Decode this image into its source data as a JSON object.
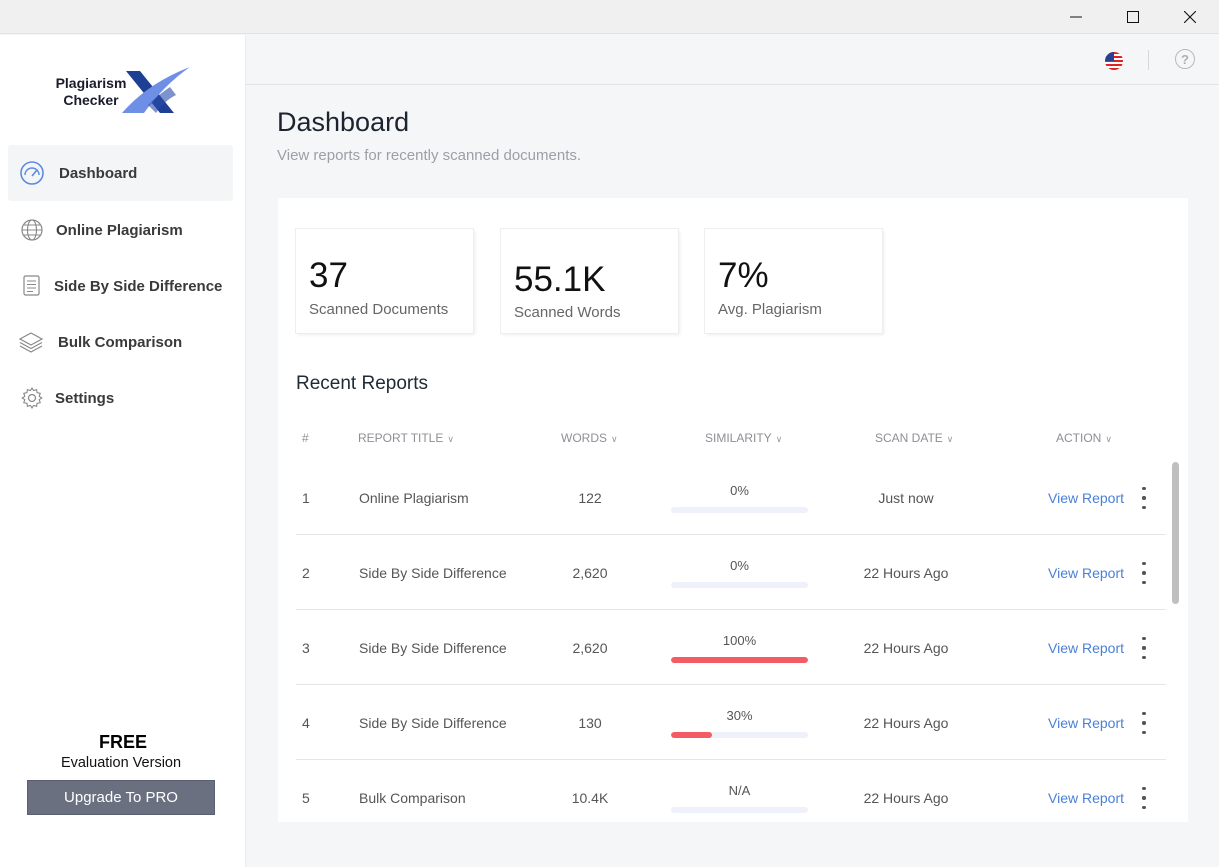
{
  "sidebar": {
    "logo": {
      "line1": "Plagiarism",
      "line2": "Checker"
    },
    "items": [
      {
        "label": "Dashboard",
        "icon": "dashboard-gauge-icon"
      },
      {
        "label": "Online Plagiarism",
        "icon": "globe-icon"
      },
      {
        "label": "Side By Side Difference",
        "icon": "document-icon"
      },
      {
        "label": "Bulk Comparison",
        "icon": "layers-icon"
      },
      {
        "label": "Settings",
        "icon": "gear-icon"
      }
    ],
    "plan": "FREE",
    "plan_note": "Evaluation Version",
    "upgrade_label": "Upgrade To PRO"
  },
  "topbar": {
    "help": "?"
  },
  "header": {
    "title": "Dashboard",
    "subtitle": "View reports for recently scanned documents."
  },
  "stats": [
    {
      "value": "37",
      "label": "Scanned Documents"
    },
    {
      "value": "55.1K",
      "label": "Scanned Words"
    },
    {
      "value": "7%",
      "label": "Avg. Plagiarism"
    }
  ],
  "reports": {
    "title": "Recent Reports",
    "columns": [
      "#",
      "REPORT TITLE",
      "WORDS",
      "SIMILARITY",
      "SCAN DATE",
      "ACTION"
    ],
    "rows": [
      {
        "num": "1",
        "title": "Online Plagiarism",
        "words": "122",
        "similarity": "0%",
        "fill": 0,
        "date": "Just now",
        "action": "View Report"
      },
      {
        "num": "2",
        "title": "Side By Side Difference",
        "words": "2,620",
        "similarity": "0%",
        "fill": 0,
        "date": "22 Hours Ago",
        "action": "View Report"
      },
      {
        "num": "3",
        "title": "Side By Side Difference",
        "words": "2,620",
        "similarity": "100%",
        "fill": 100,
        "date": "22 Hours Ago",
        "action": "View Report"
      },
      {
        "num": "4",
        "title": "Side By Side Difference",
        "words": "130",
        "similarity": "30%",
        "fill": 30,
        "date": "22 Hours Ago",
        "action": "View Report"
      },
      {
        "num": "5",
        "title": "Bulk Comparison",
        "words": "10.4K",
        "similarity": "N/A",
        "fill": 0,
        "date": "22 Hours Ago",
        "action": "View Report"
      }
    ]
  },
  "colors": {
    "accent": "#4a80d8",
    "danger": "#f25c62",
    "upgrade": "#6b7080"
  }
}
